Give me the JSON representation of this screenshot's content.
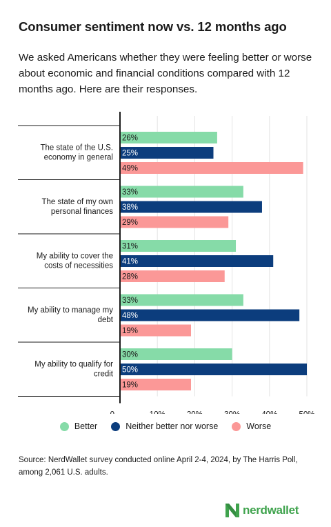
{
  "title": "Consumer sentiment now vs. 12 months ago",
  "subtitle": "We asked Americans whether they were feeling better or worse about economic and financial conditions compared with 12 months ago. Here are their responses.",
  "source": "Source: NerdWallet survey conducted online April 2-4, 2024, by The Harris Poll, among 2,061 U.S. adults.",
  "logo": {
    "text": "nerdwallet",
    "color": "#3fa34d"
  },
  "colors": {
    "Better": "#86dba8",
    "Neither better nor worse": "#0c3d7d",
    "Worse": "#fb9897"
  },
  "chart_data": {
    "type": "bar",
    "orientation": "horizontal",
    "categories": [
      "The state of the U.S. economy in general",
      "The state of my own personal finances",
      "My ability to cover the costs of necessities",
      "My ability to manage my debt",
      "My ability to qualify for credit"
    ],
    "category_lines": [
      [
        "The state of the U.S.",
        "economy in general"
      ],
      [
        "The state of my own",
        "personal finances"
      ],
      [
        "My ability to cover the",
        "costs of necessities"
      ],
      [
        "My ability to manage my",
        "debt"
      ],
      [
        "My ability to qualify for",
        "credit"
      ]
    ],
    "series": [
      {
        "name": "Better",
        "values": [
          26,
          33,
          31,
          33,
          30
        ],
        "color": "#86dba8",
        "label_color": "#1a1a1a"
      },
      {
        "name": "Neither better nor worse",
        "values": [
          25,
          38,
          41,
          48,
          50
        ],
        "color": "#0c3d7d",
        "label_color": "#ffffff"
      },
      {
        "name": "Worse",
        "values": [
          49,
          29,
          28,
          19,
          19
        ],
        "color": "#fb9897",
        "label_color": "#1a1a1a"
      }
    ],
    "value_suffix": "%",
    "xlim": [
      0,
      50
    ],
    "x_ticks": [
      {
        "value": 0,
        "label": "0"
      },
      {
        "value": 10,
        "label": "10%"
      },
      {
        "value": 20,
        "label": "20%"
      },
      {
        "value": 30,
        "label": "30%"
      },
      {
        "value": 40,
        "label": "40%"
      },
      {
        "value": 50,
        "label": "50%"
      }
    ],
    "grid": true,
    "legend_position": "bottom"
  }
}
